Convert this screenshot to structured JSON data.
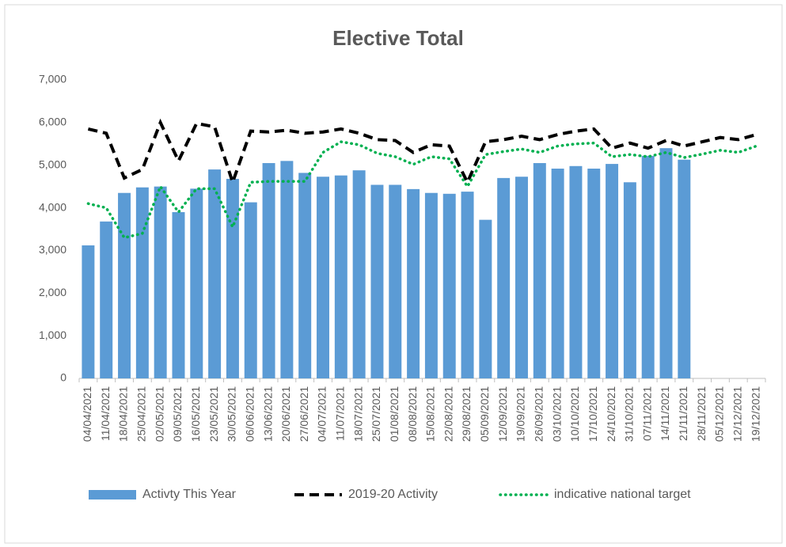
{
  "chart_data": {
    "type": "bar",
    "title": "Elective Total",
    "categories": [
      "04/04/2021",
      "11/04/2021",
      "18/04/2021",
      "25/04/2021",
      "02/05/2021",
      "09/05/2021",
      "16/05/2021",
      "23/05/2021",
      "30/05/2021",
      "06/06/2021",
      "13/06/2021",
      "20/06/2021",
      "27/06/2021",
      "04/07/2021",
      "11/07/2021",
      "18/07/2021",
      "25/07/2021",
      "01/08/2021",
      "08/08/2021",
      "15/08/2021",
      "22/08/2021",
      "29/08/2021",
      "05/09/2021",
      "12/09/2021",
      "19/09/2021",
      "26/09/2021",
      "03/10/2021",
      "10/10/2021",
      "17/10/2021",
      "24/10/2021",
      "31/10/2021",
      "07/11/2021",
      "14/11/2021",
      "21/11/2021",
      "28/11/2021",
      "05/12/2021",
      "12/12/2021",
      "19/12/2021"
    ],
    "series": [
      {
        "name": "Activty This Year",
        "kind": "bar",
        "color": "#5b9bd5",
        "values": [
          3120,
          3680,
          4350,
          4480,
          4500,
          3900,
          4450,
          4900,
          4680,
          4130,
          5050,
          5100,
          4820,
          4730,
          4760,
          4880,
          4540,
          4540,
          4440,
          4350,
          4330,
          4380,
          3720,
          4700,
          4730,
          5050,
          4920,
          4980,
          4920,
          5030,
          4600,
          5220,
          5400,
          5130,
          null,
          null,
          null,
          null
        ]
      },
      {
        "name": "2019-20 Activity",
        "kind": "dashed-line",
        "color": "#000000",
        "values": [
          5850,
          5750,
          4700,
          4900,
          6000,
          5100,
          5980,
          5900,
          4600,
          5800,
          5780,
          5820,
          5750,
          5780,
          5850,
          5750,
          5600,
          5580,
          5300,
          5480,
          5450,
          4600,
          5550,
          5600,
          5680,
          5600,
          5720,
          5800,
          5850,
          5400,
          5520,
          5400,
          5580,
          5450,
          5550,
          5650,
          5600,
          5720
        ]
      },
      {
        "name": "indicative national target",
        "kind": "dotted-line",
        "color": "#00b050",
        "values": [
          4100,
          4000,
          3300,
          3400,
          4500,
          3900,
          4450,
          4450,
          3550,
          4600,
          4620,
          4620,
          4620,
          5300,
          5550,
          5480,
          5280,
          5200,
          5020,
          5200,
          5150,
          4500,
          5250,
          5320,
          5380,
          5300,
          5450,
          5500,
          5520,
          5200,
          5250,
          5200,
          5300,
          5180,
          5260,
          5350,
          5300,
          5450
        ]
      }
    ],
    "ylim": [
      0,
      7000
    ],
    "yticks": [
      0,
      {
        "value": 1000,
        "label": "1,000"
      },
      {
        "value": 2000,
        "label": "2,000"
      },
      {
        "value": 3000,
        "label": "3,000"
      },
      {
        "value": 4000,
        "label": "4,000"
      },
      {
        "value": 5000,
        "label": "5,000"
      },
      {
        "value": 6000,
        "label": "6,000"
      },
      {
        "value": 7000,
        "label": "7,000"
      }
    ],
    "grid": false
  }
}
